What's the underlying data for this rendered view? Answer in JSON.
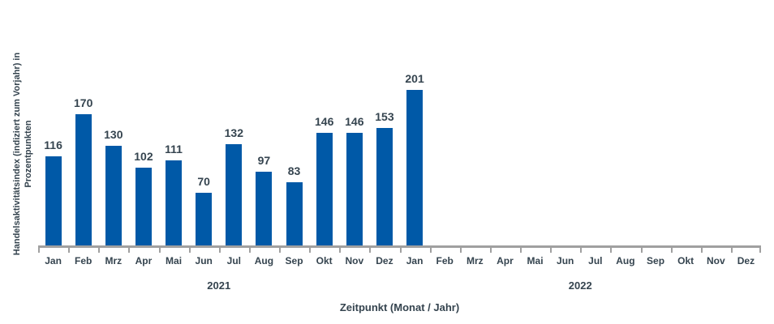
{
  "chart_data": {
    "type": "bar",
    "title": "",
    "xlabel": "Zeitpunkt (Monat / Jahr)",
    "ylabel_line1": "Handelsaktivitätsindex (indiziert zum Vorjahr) in",
    "ylabel_line2": "Prozentpunkten",
    "categories": [
      "Jan",
      "Feb",
      "Mrz",
      "Apr",
      "Mai",
      "Jun",
      "Jul",
      "Aug",
      "Sep",
      "Okt",
      "Nov",
      "Dez",
      "Jan",
      "Feb",
      "Mrz",
      "Apr",
      "Mai",
      "Jun",
      "Jul",
      "Aug",
      "Sep",
      "Okt",
      "Nov",
      "Dez"
    ],
    "year_groups": [
      {
        "label": "2021",
        "span": 12
      },
      {
        "label": "2022",
        "span": 12
      }
    ],
    "values": [
      116,
      170,
      130,
      102,
      111,
      70,
      132,
      97,
      83,
      146,
      146,
      153,
      201,
      null,
      null,
      null,
      null,
      null,
      null,
      null,
      null,
      null,
      null,
      null
    ],
    "ylim": [
      0,
      210
    ],
    "grid": false,
    "legend": "none",
    "data_labels_shown": true,
    "colors": {
      "bar": "#0059a7",
      "text": "#35444f",
      "axis": "#a0a0a0",
      "background": "#ffffff"
    }
  }
}
